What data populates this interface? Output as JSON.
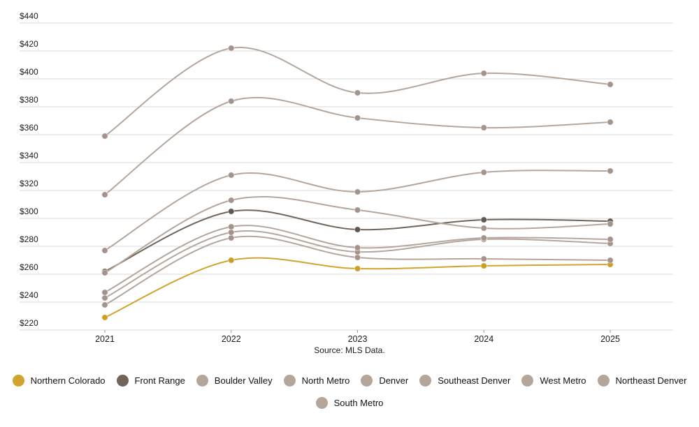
{
  "chart_data": {
    "type": "line",
    "title": "",
    "source": "Source: MLS Data.",
    "categories": [
      "2021",
      "2022",
      "2023",
      "2024",
      "2025"
    ],
    "xlabel": "",
    "ylabel": "",
    "ylim": [
      220,
      440
    ],
    "y_tick_step": 20,
    "y_ticks": [
      "$220",
      "$240",
      "$260",
      "$280",
      "$300",
      "$320",
      "$340",
      "$360",
      "$380",
      "$400",
      "$420",
      "$440"
    ],
    "grid": "horizontal",
    "legend_position": "bottom",
    "colors": {
      "background": "#ffffff",
      "gridline": "#d9d9d9",
      "axis_text": "#1a1a1a",
      "tick_mark": "#999999"
    },
    "series": [
      {
        "name": "Northern Colorado",
        "color": "#d2a42e",
        "marker_color": "#cb9e28",
        "values": [
          229,
          270,
          264,
          266,
          267
        ]
      },
      {
        "name": "Front Range",
        "color": "#6f655c",
        "marker_color": "#60584f",
        "values": [
          262,
          305,
          292,
          299,
          298
        ]
      },
      {
        "name": "Boulder Valley",
        "color": "#b5a69c",
        "marker_color": "#a3938a",
        "values": [
          359,
          422,
          390,
          404,
          396
        ]
      },
      {
        "name": "North Metro",
        "color": "#b5a69c",
        "marker_color": "#a3938a",
        "values": [
          238,
          286,
          272,
          271,
          270
        ]
      },
      {
        "name": "Denver",
        "color": "#b5a69c",
        "marker_color": "#a3938a",
        "values": [
          317,
          384,
          372,
          365,
          369
        ]
      },
      {
        "name": "Southeast Denver",
        "color": "#b5a69c",
        "marker_color": "#a3938a",
        "values": [
          261,
          313,
          306,
          293,
          296
        ]
      },
      {
        "name": "West Metro",
        "color": "#b5a69c",
        "marker_color": "#a3938a",
        "values": [
          277,
          331,
          319,
          333,
          334
        ]
      },
      {
        "name": "Northeast Denver",
        "color": "#b5a69c",
        "marker_color": "#a3938a",
        "values": [
          243,
          290,
          276,
          285,
          282
        ]
      },
      {
        "name": "South Metro",
        "color": "#b5a69c",
        "marker_color": "#a3938a",
        "values": [
          247,
          294,
          279,
          286,
          285
        ]
      }
    ]
  }
}
